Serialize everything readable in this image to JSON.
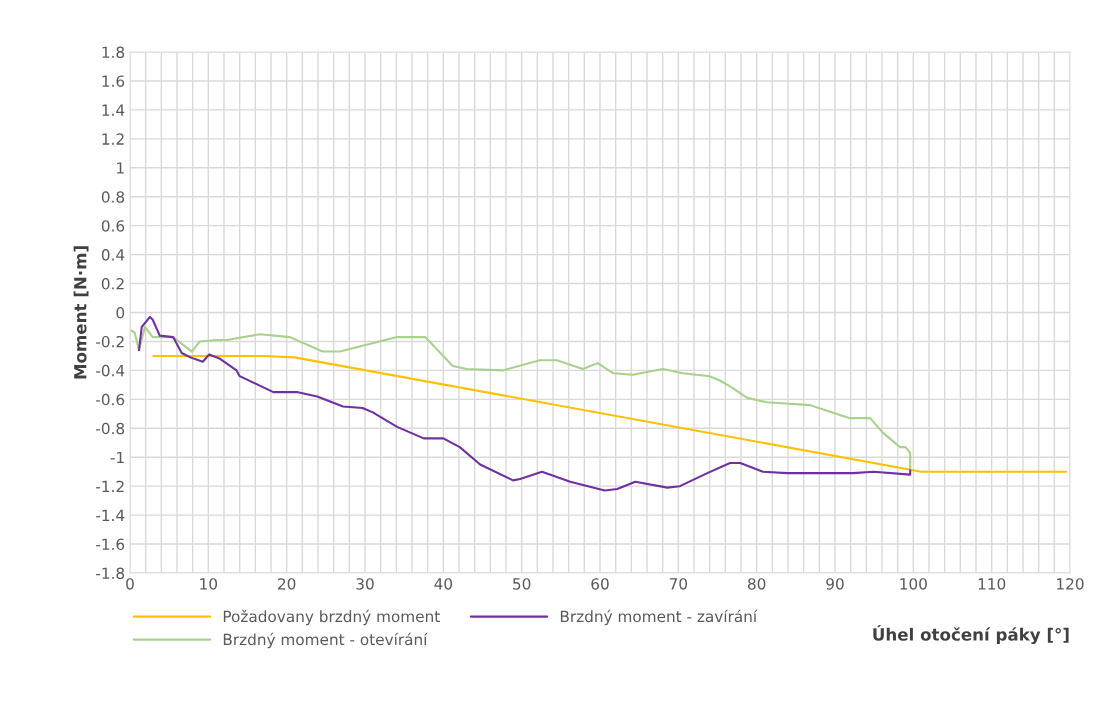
{
  "chart_data": {
    "type": "line",
    "xlabel": "Úhel otočení páky [°]",
    "ylabel": "Moment [N·m]",
    "xlim": [
      0,
      120
    ],
    "ylim": [
      -1.8,
      1.8
    ],
    "xticks": [
      0,
      {
        "value": 2,
        "label": null
      },
      {
        "value": 4,
        "label": null
      },
      {
        "value": 6,
        "label": null
      },
      {
        "value": 8,
        "label": null
      },
      10,
      {
        "value": 12,
        "label": null
      },
      {
        "value": 14,
        "label": null
      },
      {
        "value": 16,
        "label": null
      },
      {
        "value": 18,
        "label": null
      },
      20,
      {
        "value": 22,
        "label": null
      },
      {
        "value": 24,
        "label": null
      },
      {
        "value": 26,
        "label": null
      },
      {
        "value": 28,
        "label": null
      },
      30,
      {
        "value": 32,
        "label": null
      },
      {
        "value": 34,
        "label": null
      },
      {
        "value": 36,
        "label": null
      },
      {
        "value": 38,
        "label": null
      },
      40,
      {
        "value": 42,
        "label": null
      },
      {
        "value": 44,
        "label": null
      },
      {
        "value": 46,
        "label": null
      },
      {
        "value": 48,
        "label": null
      },
      50,
      {
        "value": 52,
        "label": null
      },
      {
        "value": 54,
        "label": null
      },
      {
        "value": 56,
        "label": null
      },
      {
        "value": 58,
        "label": null
      },
      60,
      {
        "value": 62,
        "label": null
      },
      {
        "value": 64,
        "label": null
      },
      {
        "value": 66,
        "label": null
      },
      {
        "value": 68,
        "label": null
      },
      70,
      {
        "value": 72,
        "label": null
      },
      {
        "value": 74,
        "label": null
      },
      {
        "value": 76,
        "label": null
      },
      {
        "value": 78,
        "label": null
      },
      80,
      {
        "value": 82,
        "label": null
      },
      {
        "value": 84,
        "label": null
      },
      {
        "value": 86,
        "label": null
      },
      {
        "value": 88,
        "label": null
      },
      90,
      {
        "value": 92,
        "label": null
      },
      {
        "value": 94,
        "label": null
      },
      {
        "value": 96,
        "label": null
      },
      {
        "value": 98,
        "label": null
      },
      100,
      {
        "value": 102,
        "label": null
      },
      {
        "value": 104,
        "label": null
      },
      {
        "value": 106,
        "label": null
      },
      {
        "value": 108,
        "label": null
      },
      110,
      {
        "value": 112,
        "label": null
      },
      {
        "value": 114,
        "label": null
      },
      {
        "value": 116,
        "label": null
      },
      {
        "value": 118,
        "label": null
      },
      120
    ],
    "yticks": [
      -1.8,
      -1.6,
      -1.4,
      -1.2,
      -1,
      -0.8,
      -0.6,
      -0.4,
      -0.2,
      0,
      0.2,
      0.4,
      0.6,
      0.8,
      1,
      1.2,
      1.4,
      1.6,
      1.8
    ],
    "grid": true,
    "legend": "bottom",
    "marker": "none",
    "line_style": "solid",
    "series": [
      {
        "name": "Požadovany brzdný moment",
        "color": "#ffc000",
        "x": [
          3,
          17,
          21,
          100,
          101,
          119.5
        ],
        "values": [
          -0.3,
          -0.3,
          -0.31,
          -1.09,
          -1.1,
          -1.1
        ]
      },
      {
        "name": "Brzdný moment - otevírání",
        "color": "#a9d18e",
        "x": [
          0,
          0.6,
          1.15,
          1.9,
          2.9,
          5.5,
          7.9,
          8.9,
          11.1,
          12.4,
          16.6,
          20.4,
          24.6,
          26.8,
          34.1,
          37.7,
          41.2,
          43,
          47.6,
          52.3,
          54.5,
          57.8,
          59.7,
          61.7,
          64.2,
          68,
          70.6,
          74,
          75.3,
          76.6,
          78.8,
          81.3,
          86.8,
          88.5,
          91.9,
          94.5,
          96.1,
          98.3,
          99,
          99.6,
          99.6
        ],
        "values": [
          -0.12,
          -0.14,
          -0.26,
          -0.1,
          -0.17,
          -0.17,
          -0.27,
          -0.2,
          -0.19,
          -0.19,
          -0.15,
          -0.17,
          -0.27,
          -0.27,
          -0.17,
          -0.17,
          -0.37,
          -0.39,
          -0.4,
          -0.33,
          -0.33,
          -0.39,
          -0.35,
          -0.42,
          -0.43,
          -0.39,
          -0.42,
          -0.44,
          -0.47,
          -0.51,
          -0.59,
          -0.62,
          -0.64,
          -0.67,
          -0.73,
          -0.73,
          -0.83,
          -0.93,
          -0.93,
          -0.97,
          -1.09
        ]
      },
      {
        "name": "Brzdný moment - zavírání",
        "color": "#7030a0",
        "x": [
          1.15,
          1.5,
          2.55,
          2.9,
          3.8,
          5.5,
          6.6,
          7.7,
          9.3,
          10.1,
          11.5,
          13.6,
          14,
          18.3,
          21.3,
          23.9,
          27.2,
          29.7,
          31,
          34.1,
          37.5,
          40,
          42.1,
          44.7,
          48.9,
          49.8,
          52.6,
          56.2,
          60.6,
          62.2,
          64.5,
          68.6,
          70.2,
          73.7,
          76.6,
          77.9,
          80.8,
          83.9,
          92.3,
          94.9,
          99.6,
          99.6
        ],
        "values": [
          -0.26,
          -0.1,
          -0.03,
          -0.05,
          -0.16,
          -0.17,
          -0.28,
          -0.31,
          -0.34,
          -0.29,
          -0.32,
          -0.4,
          -0.44,
          -0.55,
          -0.55,
          -0.58,
          -0.65,
          -0.66,
          -0.69,
          -0.79,
          -0.87,
          -0.87,
          -0.93,
          -1.05,
          -1.16,
          -1.15,
          -1.1,
          -1.17,
          -1.23,
          -1.22,
          -1.17,
          -1.21,
          -1.2,
          -1.11,
          -1.04,
          -1.04,
          -1.1,
          -1.11,
          -1.11,
          -1.1,
          -1.12,
          -1.09
        ]
      }
    ]
  }
}
